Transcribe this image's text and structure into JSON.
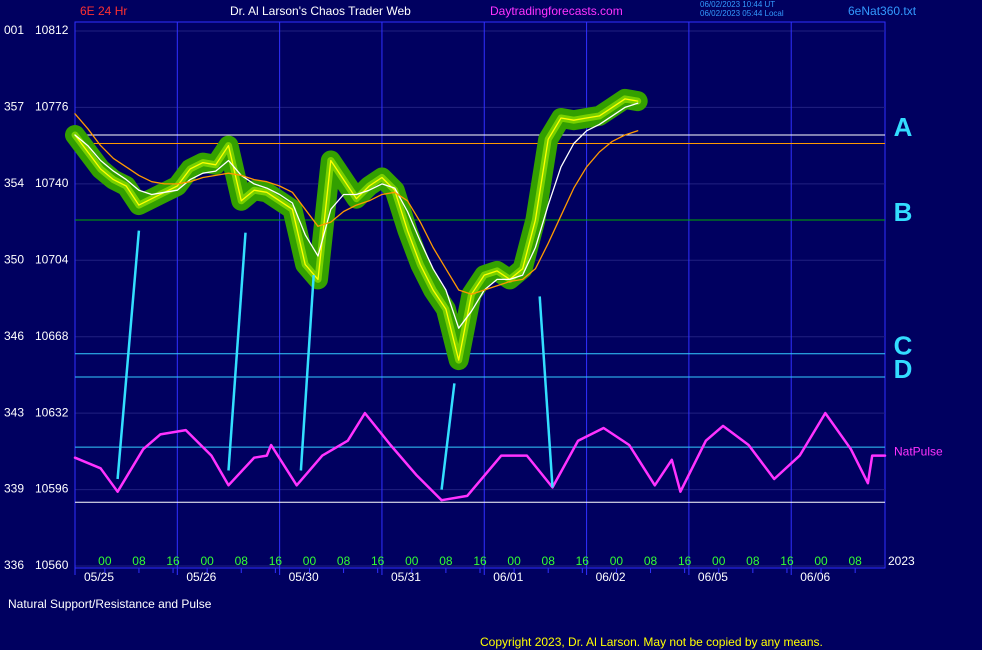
{
  "chart_data": {
    "type": "line",
    "header": {
      "symbol": "6E 24 Hr",
      "title": "Dr. Al Larson's Chaos Trader Web",
      "website": "Daytradingforecasts.com",
      "timestamp_ut": "06/02/2023 10:44 UT",
      "timestamp_local": "06/02/2023 05:44 Local",
      "file": "6eNat360.txt"
    },
    "caption": "Natural Support/Resistance and Pulse",
    "copyright": "Copyright 2023, Dr. Al Larson. May not be copied by any means.",
    "year_label": "2023",
    "ylim": [
      10560,
      10812
    ],
    "yticks": [
      10560,
      10596,
      10632,
      10668,
      10704,
      10740,
      10776,
      10812
    ],
    "degree_labels": [
      "336",
      "339",
      "343",
      "346",
      "350",
      "354",
      "357",
      "001"
    ],
    "xlim": [
      0,
      190
    ],
    "xticks": [
      {
        "value": 0,
        "label": "05/25"
      },
      {
        "value": 24,
        "label": "05/26"
      },
      {
        "value": 48,
        "label": "05/30"
      },
      {
        "value": 72,
        "label": "05/31"
      },
      {
        "value": 96,
        "label": "06/01"
      },
      {
        "value": 120,
        "label": "06/02"
      },
      {
        "value": 144,
        "label": "06/05"
      },
      {
        "value": 168,
        "label": "06/06"
      }
    ],
    "hour_ticks": [
      {
        "value": 7,
        "label": "00"
      },
      {
        "value": 15,
        "label": "08"
      },
      {
        "value": 23,
        "label": "16"
      },
      {
        "value": 31,
        "label": "00"
      },
      {
        "value": 39,
        "label": "08"
      },
      {
        "value": 47,
        "label": "16"
      },
      {
        "value": 55,
        "label": "00"
      },
      {
        "value": 63,
        "label": "08"
      },
      {
        "value": 71,
        "label": "16"
      },
      {
        "value": 79,
        "label": "00"
      },
      {
        "value": 87,
        "label": "08"
      },
      {
        "value": 95,
        "label": "16"
      },
      {
        "value": 103,
        "label": "00"
      },
      {
        "value": 111,
        "label": "08"
      },
      {
        "value": 119,
        "label": "16"
      },
      {
        "value": 127,
        "label": "00"
      },
      {
        "value": 135,
        "label": "08"
      },
      {
        "value": 143,
        "label": "16"
      },
      {
        "value": 151,
        "label": "00"
      },
      {
        "value": 159,
        "label": "08"
      },
      {
        "value": 167,
        "label": "16"
      },
      {
        "value": 175,
        "label": "00"
      },
      {
        "value": 183,
        "label": "08"
      }
    ],
    "grid": true,
    "series": [
      {
        "color": "#ffff00",
        "glow": "#33a000",
        "x": [
          0,
          3,
          6,
          9,
          12,
          15,
          18,
          21,
          24,
          27,
          30,
          33,
          36,
          39,
          42,
          45,
          48,
          51,
          54,
          57,
          60,
          63,
          66,
          69,
          72,
          75,
          78,
          81,
          84,
          87,
          90,
          93,
          96,
          99,
          102,
          105,
          108,
          111,
          114,
          117,
          120,
          123,
          126,
          129,
          132
        ],
        "values": [
          10763,
          10755,
          10747,
          10742,
          10739,
          10730,
          10733,
          10736,
          10739,
          10747,
          10750,
          10749,
          10758,
          10732,
          10737,
          10736,
          10732,
          10728,
          10702,
          10695,
          10751,
          10742,
          10733,
          10739,
          10743,
          10737,
          10718,
          10702,
          10690,
          10681,
          10657,
          10688,
          10697,
          10699,
          10695,
          10700,
          10723,
          10761,
          10771,
          10770,
          10771,
          10772,
          10776,
          10780,
          10779
        ]
      },
      {
        "color": "#ffffff",
        "x": [
          0,
          3,
          6,
          9,
          12,
          15,
          18,
          21,
          24,
          27,
          30,
          33,
          36,
          39,
          42,
          45,
          48,
          51,
          54,
          57,
          60,
          63,
          66,
          69,
          72,
          75,
          78,
          81,
          84,
          87,
          90,
          93,
          96,
          99,
          102,
          105,
          108,
          111,
          114,
          117,
          120,
          123,
          126,
          129,
          132
        ],
        "values": [
          10763,
          10758,
          10751,
          10746,
          10742,
          10737,
          10735,
          10736,
          10737,
          10742,
          10745,
          10746,
          10751,
          10744,
          10740,
          10738,
          10735,
          10731,
          10716,
          10706,
          10728,
          10735,
          10735,
          10737,
          10740,
          10738,
          10727,
          10713,
          10700,
          10690,
          10672,
          10680,
          10690,
          10695,
          10695,
          10697,
          10710,
          10730,
          10748,
          10759,
          10765,
          10768,
          10772,
          10776,
          10778
        ]
      },
      {
        "color": "#ff9900",
        "x": [
          0,
          3,
          6,
          9,
          12,
          15,
          18,
          21,
          24,
          27,
          30,
          33,
          36,
          39,
          42,
          45,
          48,
          51,
          54,
          57,
          60,
          63,
          66,
          69,
          72,
          75,
          78,
          81,
          84,
          87,
          90,
          93,
          96,
          99,
          102,
          105,
          108,
          111,
          114,
          117,
          120,
          123,
          126,
          129,
          132
        ],
        "values": [
          10773,
          10766,
          10758,
          10752,
          10748,
          10744,
          10741,
          10740,
          10740,
          10741,
          10743,
          10744,
          10745,
          10744,
          10742,
          10741,
          10739,
          10736,
          10728,
          10720,
          10722,
          10727,
          10730,
          10732,
          10735,
          10736,
          10732,
          10722,
          10710,
          10700,
          10690,
          10688,
          10690,
          10692,
          10694,
          10695,
          10700,
          10712,
          10725,
          10738,
          10748,
          10755,
          10760,
          10763,
          10765
        ]
      },
      {
        "name": "NatPulse",
        "color": "#ff33ff",
        "x": [
          0,
          6,
          10,
          16,
          20,
          26,
          32,
          36,
          42,
          45,
          46,
          52,
          58,
          64,
          68,
          74,
          80,
          86,
          92,
          100,
          106,
          112,
          118,
          124,
          130,
          136,
          140,
          142,
          148,
          152,
          158,
          164,
          170,
          176,
          182,
          186,
          187,
          190
        ],
        "values": [
          10611,
          10606,
          10595,
          10615,
          10622,
          10624,
          10612,
          10598,
          10611,
          10612,
          10617,
          10598,
          10612,
          10619,
          10632,
          10617,
          10603,
          10591,
          10593,
          10612,
          10612,
          10597,
          10619,
          10625,
          10617,
          10598,
          10610,
          10595,
          10619,
          10626,
          10617,
          10601,
          10612,
          10632,
          10615,
          10599,
          10612,
          10612
        ]
      }
    ],
    "levels": [
      {
        "value": 10763,
        "color": "#ffffff",
        "label": "A"
      },
      {
        "value": 10759,
        "color": "#ff9900"
      },
      {
        "value": 10723,
        "color": "#00aa00",
        "label": "B"
      },
      {
        "value": 10660,
        "color": "#33ccff",
        "label": "C"
      },
      {
        "value": 10649,
        "color": "#33ccff",
        "label": "D"
      },
      {
        "value": 10616,
        "color": "#33ccff"
      },
      {
        "value": 10590,
        "color": "#ffffff"
      }
    ],
    "connector_color": "#33e0ff",
    "connectors": [
      {
        "x": [
          10,
          15
        ],
        "values": [
          10601,
          10718
        ]
      },
      {
        "x": [
          36,
          40
        ],
        "values": [
          10605,
          10717
        ]
      },
      {
        "x": [
          53,
          56
        ],
        "values": [
          10605,
          10697
        ]
      },
      {
        "x": [
          86,
          89
        ],
        "values": [
          10596,
          10646
        ]
      },
      {
        "x": [
          112,
          109
        ],
        "values": [
          10597,
          10687
        ]
      }
    ]
  }
}
